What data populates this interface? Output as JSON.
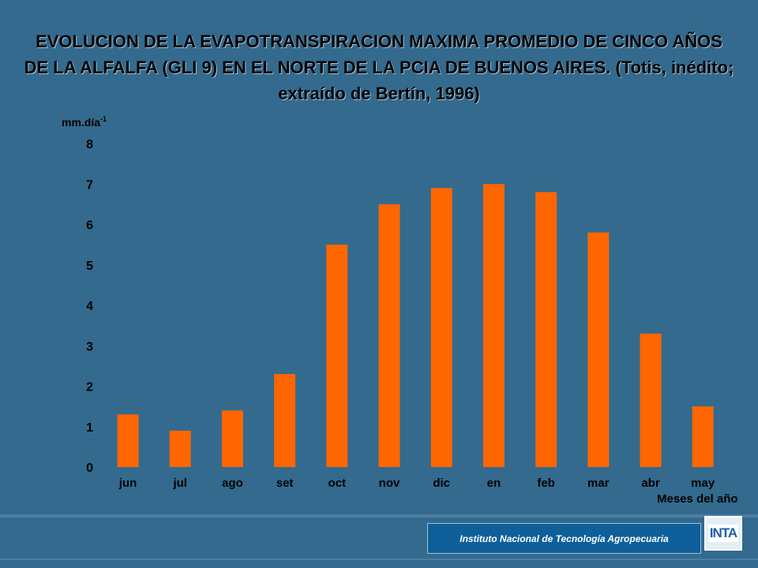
{
  "chart_data": {
    "type": "bar",
    "title": "EVOLUCION DE LA EVAPOTRANSPIRACION MAXIMA PROMEDIO DE CINCO AÑOS DE LA ALFALFA (GLI 9) EN EL NORTE DE LA PCIA DE BUENOS AIRES. (Totis, inédito; extraído de Bertín, 1996)",
    "ylabel": "mm.día",
    "ylabel_sup": "-1",
    "xlabel": "Meses del año",
    "categories": [
      "jun",
      "jul",
      "ago",
      "set",
      "oct",
      "nov",
      "dic",
      "en",
      "feb",
      "mar",
      "abr",
      "may"
    ],
    "values": [
      1.3,
      0.9,
      1.4,
      2.3,
      5.5,
      6.5,
      6.9,
      7.0,
      6.8,
      5.8,
      3.3,
      1.5
    ],
    "ylim": [
      0,
      8
    ],
    "yticks": [
      0,
      1,
      2,
      3,
      4,
      5,
      6,
      7,
      8
    ],
    "bar_color": "#ff6600",
    "grid": false
  },
  "footer": {
    "institute": "Instituto Nacional de Tecnología Agropecuaria",
    "logo_text": "INTA"
  }
}
